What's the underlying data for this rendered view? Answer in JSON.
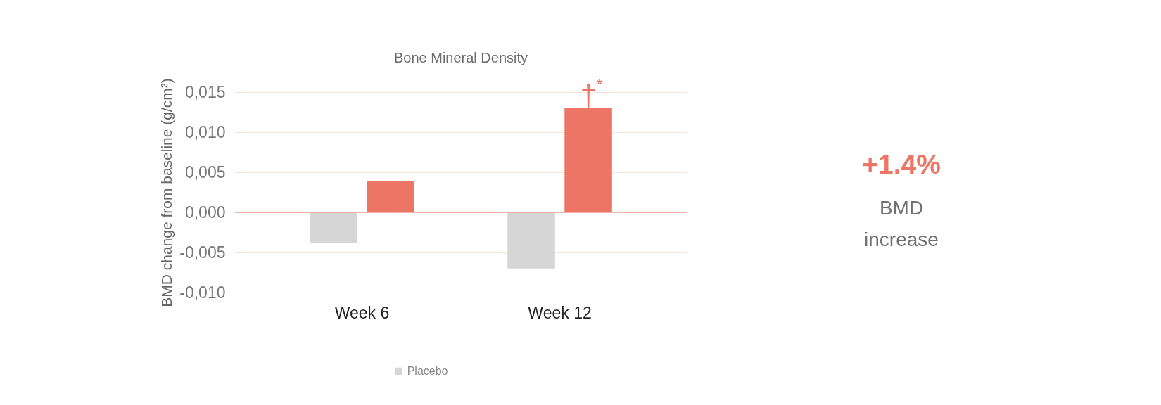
{
  "chart_data": [
    {
      "type": "bar",
      "title": "Bone Mineral Density",
      "ylabel": "BMD change from baseline (g/cm²)",
      "categories": [
        "Week 6",
        "Week 12"
      ],
      "series": [
        {
          "name": "Placebo",
          "color": "#d5d6d5",
          "values": [
            -0.0038,
            -0.007
          ]
        },
        {
          "color": "#ec7565",
          "values": [
            0.0039,
            0.013
          ]
        }
      ],
      "ylim": [
        -0.01,
        0.015
      ],
      "yticks": [
        {
          "value": -0.01,
          "label": "-0,010"
        },
        {
          "value": -0.005,
          "label": "-0,005"
        },
        {
          "value": 0,
          "label": "0,000"
        },
        {
          "value": 0.005,
          "label": "0,005"
        },
        {
          "value": 0.01,
          "label": "0,010"
        },
        {
          "value": 0.015,
          "label": "0,015"
        }
      ],
      "grid": "y",
      "legend": "bottom",
      "ref_lines": [
        {
          "axis": "y",
          "value": 0,
          "color": "#f2a194"
        }
      ],
      "annotations": [
        "†$^{*}$"
      ]
    },
    {
      "type": "other",
      "annotations": [
        "+1.4%",
        "BMD\nincrease"
      ]
    }
  ]
}
